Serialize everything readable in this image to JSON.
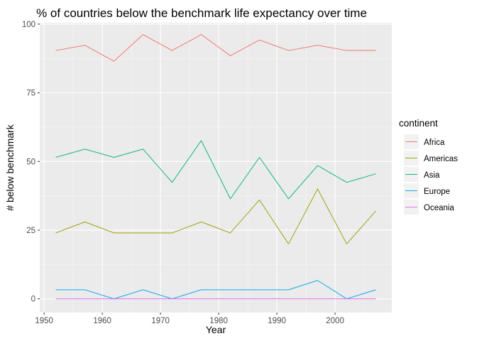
{
  "chart_data": {
    "type": "line",
    "title": "% of countries below the benchmark life expectancy over time",
    "xlabel": "Year",
    "ylabel": "# below benchmark",
    "x": [
      1952,
      1957,
      1962,
      1967,
      1972,
      1977,
      1982,
      1987,
      1992,
      1997,
      2002,
      2007
    ],
    "xlim": [
      1949.25,
      2009.75
    ],
    "ylim": [
      -5,
      100.5
    ],
    "xticks": [
      1950,
      1960,
      1970,
      1980,
      1990,
      2000
    ],
    "xtick_labels": [
      "1950",
      "1960",
      "1970",
      "1980",
      "1990",
      "2000"
    ],
    "yticks": [
      0,
      25,
      50,
      75,
      100
    ],
    "ytick_labels": [
      "0",
      "25",
      "50",
      "75",
      "100"
    ],
    "grid": true,
    "legend": {
      "title": "continent",
      "position": "right"
    },
    "series": [
      {
        "name": "Africa",
        "color": "#F8766D",
        "values": [
          90.4,
          92.3,
          86.5,
          96.2,
          90.4,
          96.2,
          88.5,
          94.2,
          90.4,
          92.3,
          90.4,
          90.4
        ]
      },
      {
        "name": "Americas",
        "color": "#A3A500",
        "values": [
          24,
          28,
          24,
          24,
          24,
          28,
          24,
          36,
          20,
          40,
          20,
          32
        ]
      },
      {
        "name": "Asia",
        "color": "#00BF7D",
        "values": [
          51.5,
          54.5,
          51.5,
          54.5,
          42.4,
          57.6,
          36.4,
          51.5,
          36.4,
          48.5,
          42.4,
          45.5
        ]
      },
      {
        "name": "Europe",
        "color": "#00B0F6",
        "values": [
          3.3,
          3.3,
          0,
          3.3,
          0,
          3.3,
          3.3,
          3.3,
          3.3,
          6.7,
          0,
          3.3
        ]
      },
      {
        "name": "Oceania",
        "color": "#E76BF3",
        "values": [
          0,
          0,
          0,
          0,
          0,
          0,
          0,
          0,
          0,
          0,
          0,
          0
        ]
      }
    ]
  }
}
